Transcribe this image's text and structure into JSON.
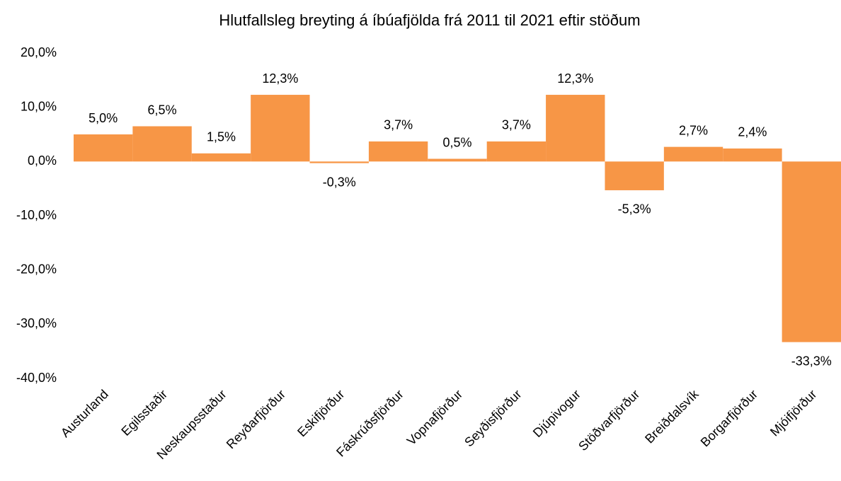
{
  "chart_data": {
    "type": "bar",
    "title": "Hlutfallsleg breyting á íbúafjölda frá 2011 til 2021 eftir stöðum",
    "categories": [
      "Austurland",
      "Egilsstaðir",
      "Neskaupsstaður",
      "Reyðarfjörður",
      "Eskifjörður",
      "Fáskrúðsfjörður",
      "Vopnafjörður",
      "Seyðisfjörður",
      "Djúpivogur",
      "Stöðvarfjörður",
      "Breiðdalsvík",
      "Borgarfjörður",
      "Mjóifjörður"
    ],
    "values": [
      5.0,
      6.5,
      1.5,
      12.3,
      -0.3,
      3.7,
      0.5,
      3.7,
      12.3,
      -5.3,
      2.7,
      2.4,
      -33.3
    ],
    "value_labels": [
      "5,0%",
      "6,5%",
      "1,5%",
      "12,3%",
      "-0,3%",
      "3,7%",
      "0,5%",
      "3,7%",
      "12,3%",
      "-5,3%",
      "2,7%",
      "2,4%",
      "-33,3%"
    ],
    "color": "#f79646",
    "ylim": [
      -40,
      20
    ],
    "yticks": [
      {
        "value": 20,
        "label": "20,0%"
      },
      {
        "value": 10,
        "label": "10,0%"
      },
      {
        "value": 0,
        "label": "0,0%"
      },
      {
        "value": -10,
        "label": "-10,0%"
      },
      {
        "value": -20,
        "label": "-20,0%"
      },
      {
        "value": -30,
        "label": "-30,0%"
      },
      {
        "value": -40,
        "label": "-40,0%"
      }
    ],
    "grid": false
  }
}
